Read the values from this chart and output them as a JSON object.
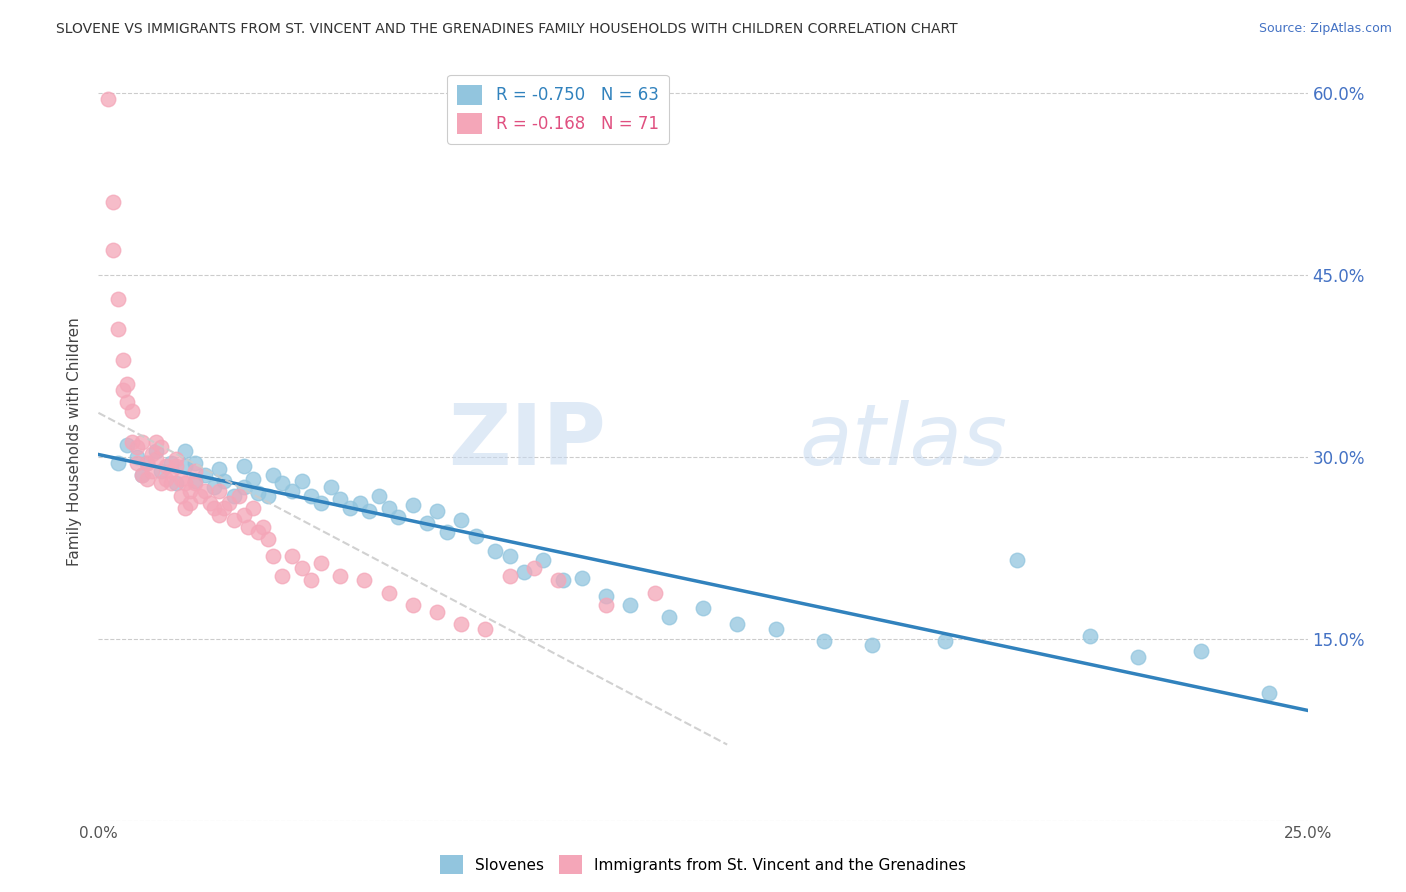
{
  "title": "SLOVENE VS IMMIGRANTS FROM ST. VINCENT AND THE GRENADINES FAMILY HOUSEHOLDS WITH CHILDREN CORRELATION CHART",
  "source": "Source: ZipAtlas.com",
  "ylabel": "Family Households with Children",
  "x_min": 0.0,
  "x_max": 0.25,
  "y_min": 0.0,
  "y_max": 0.625,
  "x_ticks": [
    0.0,
    0.05,
    0.1,
    0.15,
    0.2,
    0.25
  ],
  "x_tick_labels": [
    "0.0%",
    "",
    "",
    "",
    "",
    "25.0%"
  ],
  "y_ticks": [
    0.0,
    0.15,
    0.3,
    0.45,
    0.6
  ],
  "y_tick_labels_right": [
    "",
    "15.0%",
    "30.0%",
    "45.0%",
    "60.0%"
  ],
  "blue_R": -0.75,
  "blue_N": 63,
  "pink_R": -0.168,
  "pink_N": 71,
  "blue_color": "#92c5de",
  "pink_color": "#f4a6b8",
  "blue_line_color": "#3182bd",
  "pink_line_color": "#cccccc",
  "watermark_zip": "ZIP",
  "watermark_atlas": "atlas",
  "legend_label_blue": "Slovenes",
  "legend_label_pink": "Immigrants from St. Vincent and the Grenadines",
  "blue_scatter_x": [
    0.004,
    0.006,
    0.008,
    0.009,
    0.01,
    0.012,
    0.013,
    0.015,
    0.016,
    0.018,
    0.018,
    0.02,
    0.02,
    0.022,
    0.024,
    0.025,
    0.026,
    0.028,
    0.03,
    0.03,
    0.032,
    0.033,
    0.035,
    0.036,
    0.038,
    0.04,
    0.042,
    0.044,
    0.046,
    0.048,
    0.05,
    0.052,
    0.054,
    0.056,
    0.058,
    0.06,
    0.062,
    0.065,
    0.068,
    0.07,
    0.072,
    0.075,
    0.078,
    0.082,
    0.085,
    0.088,
    0.092,
    0.096,
    0.1,
    0.105,
    0.11,
    0.118,
    0.125,
    0.132,
    0.14,
    0.15,
    0.16,
    0.175,
    0.19,
    0.205,
    0.215,
    0.228,
    0.242
  ],
  "blue_scatter_y": [
    0.295,
    0.31,
    0.3,
    0.285,
    0.295,
    0.305,
    0.288,
    0.295,
    0.278,
    0.292,
    0.305,
    0.28,
    0.295,
    0.285,
    0.275,
    0.29,
    0.28,
    0.268,
    0.275,
    0.292,
    0.282,
    0.27,
    0.268,
    0.285,
    0.278,
    0.272,
    0.28,
    0.268,
    0.262,
    0.275,
    0.265,
    0.258,
    0.262,
    0.255,
    0.268,
    0.258,
    0.25,
    0.26,
    0.245,
    0.255,
    0.238,
    0.248,
    0.235,
    0.222,
    0.218,
    0.205,
    0.215,
    0.198,
    0.2,
    0.185,
    0.178,
    0.168,
    0.175,
    0.162,
    0.158,
    0.148,
    0.145,
    0.148,
    0.215,
    0.152,
    0.135,
    0.14,
    0.105
  ],
  "pink_scatter_x": [
    0.002,
    0.003,
    0.003,
    0.004,
    0.004,
    0.005,
    0.005,
    0.006,
    0.006,
    0.007,
    0.007,
    0.008,
    0.008,
    0.009,
    0.009,
    0.01,
    0.01,
    0.011,
    0.011,
    0.012,
    0.012,
    0.013,
    0.013,
    0.014,
    0.014,
    0.015,
    0.015,
    0.016,
    0.016,
    0.017,
    0.017,
    0.018,
    0.018,
    0.019,
    0.019,
    0.02,
    0.02,
    0.021,
    0.022,
    0.023,
    0.024,
    0.025,
    0.025,
    0.026,
    0.027,
    0.028,
    0.029,
    0.03,
    0.031,
    0.032,
    0.033,
    0.034,
    0.035,
    0.036,
    0.038,
    0.04,
    0.042,
    0.044,
    0.046,
    0.05,
    0.055,
    0.06,
    0.065,
    0.07,
    0.075,
    0.08,
    0.085,
    0.09,
    0.095,
    0.105,
    0.115
  ],
  "pink_scatter_y": [
    0.595,
    0.51,
    0.47,
    0.43,
    0.405,
    0.38,
    0.355,
    0.36,
    0.345,
    0.338,
    0.312,
    0.308,
    0.295,
    0.285,
    0.312,
    0.295,
    0.282,
    0.302,
    0.288,
    0.298,
    0.312,
    0.278,
    0.308,
    0.292,
    0.282,
    0.288,
    0.278,
    0.292,
    0.298,
    0.282,
    0.268,
    0.278,
    0.258,
    0.272,
    0.262,
    0.278,
    0.288,
    0.268,
    0.272,
    0.262,
    0.258,
    0.252,
    0.272,
    0.258,
    0.262,
    0.248,
    0.268,
    0.252,
    0.242,
    0.258,
    0.238,
    0.242,
    0.232,
    0.218,
    0.202,
    0.218,
    0.208,
    0.198,
    0.212,
    0.202,
    0.198,
    0.188,
    0.178,
    0.172,
    0.162,
    0.158,
    0.202,
    0.208,
    0.198,
    0.178,
    0.188
  ]
}
